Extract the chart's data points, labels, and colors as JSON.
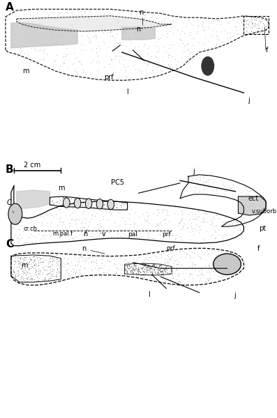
{
  "figure_width": 3.97,
  "figure_height": 6.0,
  "dpi": 100,
  "background_color": "#ffffff",
  "panel_A_label": "A",
  "panel_B_label": "B",
  "panel_C_label": "C",
  "scale_bar_text": "2 cm",
  "dot_color": "#aaaaaa",
  "line_color": "#000000",
  "gray_fill": "#cccccc"
}
